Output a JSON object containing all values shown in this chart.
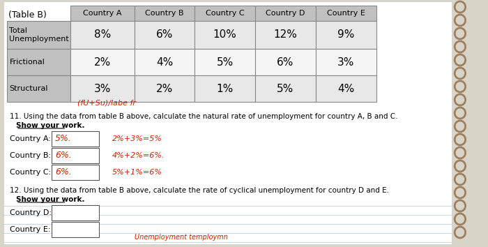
{
  "title": "(Table B)",
  "columns": [
    "",
    "Country A",
    "Country B",
    "Country C",
    "Country D",
    "Country E"
  ],
  "rows": [
    [
      "Total\nUnemployment",
      "8%",
      "6%",
      "10%",
      "12%",
      "9%"
    ],
    [
      "Frictional",
      "2%",
      "4%",
      "5%",
      "6%",
      "3%"
    ],
    [
      "Structural",
      "3%",
      "2%",
      "1%",
      "5%",
      "4%"
    ]
  ],
  "header_bg": "#c0c0c0",
  "row_label_bg": "#c0c0c0",
  "data_bg_light": "#e8e8e8",
  "data_bg_white": "#f5f5f5",
  "page_bg": "#d8d4c8",
  "spiral_color": "#8B7355",
  "q11_text": "11. Using the data from table B above, calculate the natural rate of unemployment for country A, B and C.",
  "q11_subtext": "Show your work.",
  "q12_text": "12. Using the data from table B above, calculate the rate of cyclical unemployment for country D and E.",
  "q12_subtext": "Show your work.",
  "handwritten_label": "(fU+Su)/labe fr",
  "answer_A": "5%.",
  "answer_B": "6%.",
  "answer_C": "6%.",
  "work_A": "2%+3%=5%",
  "work_B": "4%+2%=6%.",
  "work_C": "5%+1%=6%",
  "bottom_text": "Unemployment temploymn"
}
